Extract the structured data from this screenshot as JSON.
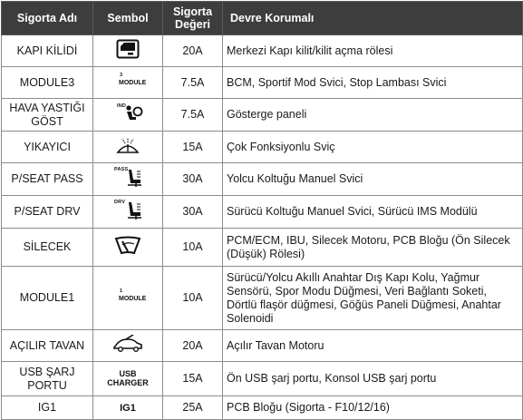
{
  "table": {
    "headers": {
      "name": "Sigorta Adı",
      "symbol": "Sembol",
      "value": "Sigorta Değeri",
      "circuit": "Devre Korumalı"
    },
    "rows": [
      {
        "name": "KAPI KİLİDİ",
        "symbol_icon": "door-lock-icon",
        "value": "20A",
        "circuit": "Merkezi Kapı kilit/kilit açma rölesi"
      },
      {
        "name": "MODULE3",
        "symbol_icon": "module-icon",
        "symbol_number": "3",
        "symbol_text": "MODULE",
        "value": "7.5A",
        "circuit": "BCM, Sportif Mod Svici, Stop Lambası Svici"
      },
      {
        "name": "HAVA YASTIĞI GÖST",
        "symbol_icon": "airbag-indicator-icon",
        "symbol_small": "IND",
        "value": "7.5A",
        "circuit": "Gösterge paneli"
      },
      {
        "name": "YIKAYICI",
        "symbol_icon": "washer-icon",
        "value": "15A",
        "circuit": "Çok Fonksiyonlu Sviç"
      },
      {
        "name": "P/SEAT PASS",
        "symbol_icon": "passenger-seat-icon",
        "symbol_small": "PASS",
        "value": "30A",
        "circuit": "Yolcu Koltuğu Manuel Svici"
      },
      {
        "name": "P/SEAT DRV",
        "symbol_icon": "driver-seat-icon",
        "symbol_small": "DRV",
        "value": "30A",
        "circuit": "Sürücü Koltuğu Manuel Svici, Sürücü IMS Modülü"
      },
      {
        "name": "SİLECEK",
        "symbol_icon": "wiper-icon",
        "value": "10A",
        "circuit": "PCM/ECM, IBU, Silecek Motoru, PCB Bloğu (Ön Silecek (Düşük) Rölesi)"
      },
      {
        "name": "MODULE1",
        "symbol_icon": "module-icon",
        "symbol_number": "1",
        "symbol_text": "MODULE",
        "value": "10A",
        "circuit": "Sürücü/Yolcu Akıllı Anahtar Dış Kapı Kolu, Yağmur Sensörü, Spor Modu Düğmesi, Veri Bağlantı Soketi, Dörtlü flaşör düğmesi, Göğüs Paneli Düğmesi, Anahtar Solenoidi"
      },
      {
        "name": "AÇILIR TAVAN",
        "symbol_icon": "sunroof-icon",
        "value": "20A",
        "circuit": "Açılır Tavan Motoru"
      },
      {
        "name": "USB ŞARJ PORTU",
        "symbol_icon": "usb-charger-icon",
        "symbol_text": "USB CHARGER",
        "value": "15A",
        "circuit": "Ön USB şarj portu, Konsol USB şarj portu"
      },
      {
        "name": "IG1",
        "symbol_icon": "ig1-icon",
        "symbol_text": "IG1",
        "value": "25A",
        "circuit": "PCB Bloğu (Sigorta - F10/12/16)"
      }
    ]
  }
}
